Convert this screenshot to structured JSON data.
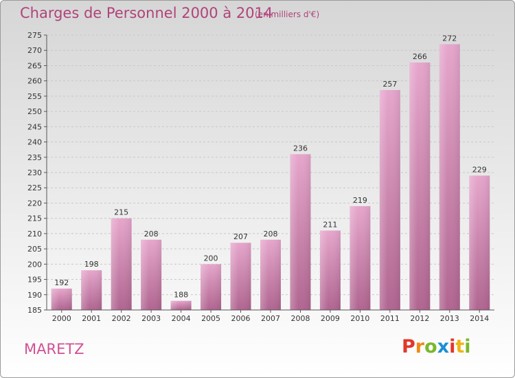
{
  "header": {
    "title": "Charges de Personnel 2000 à 2014",
    "subtitle": "(en milliers d'€)"
  },
  "footer": {
    "town": "MARETZ",
    "logo_letters": [
      "P",
      "r",
      "o",
      "x",
      "i",
      "t",
      "i"
    ],
    "logo_colors": [
      "#e2372a",
      "#f08a17",
      "#7ab82a",
      "#1a8fd6",
      "#e2372a",
      "#f0b417",
      "#7ab82a"
    ]
  },
  "chart_data": {
    "type": "bar",
    "categories": [
      "2000",
      "2001",
      "2002",
      "2003",
      "2004",
      "2005",
      "2006",
      "2007",
      "2008",
      "2009",
      "2010",
      "2011",
      "2012",
      "2013",
      "2014"
    ],
    "values": [
      192,
      198,
      215,
      208,
      188,
      200,
      207,
      208,
      236,
      211,
      219,
      257,
      266,
      272,
      229
    ],
    "title": "Charges de Personnel 2000 à 2014",
    "subtitle": "(en milliers d'€)",
    "ylim": [
      185,
      275
    ],
    "yticks": [
      185,
      190,
      195,
      200,
      205,
      210,
      215,
      220,
      225,
      230,
      235,
      240,
      245,
      250,
      255,
      260,
      265,
      270,
      275
    ],
    "grid": true,
    "bar_color": "#d98ab8",
    "data_labels": true
  }
}
